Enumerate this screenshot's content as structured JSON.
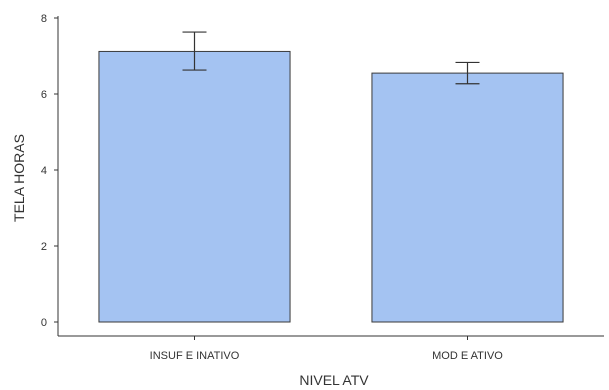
{
  "chart_data": {
    "type": "bar",
    "categories": [
      "INSUF E INATIVO",
      "MOD E ATIVO"
    ],
    "values": [
      7.12,
      6.55
    ],
    "error_bars": [
      {
        "low": 6.63,
        "high": 7.63
      },
      {
        "low": 6.27,
        "high": 6.83
      }
    ],
    "xlabel": "NIVEL ATV",
    "ylabel": "TELA HORAS",
    "ylim": [
      0,
      8
    ],
    "yticks": [
      0,
      2,
      4,
      6,
      8
    ],
    "grid": false,
    "bar_color": "#a4c3f2",
    "bar_edge_color": "#3a3a3a"
  }
}
